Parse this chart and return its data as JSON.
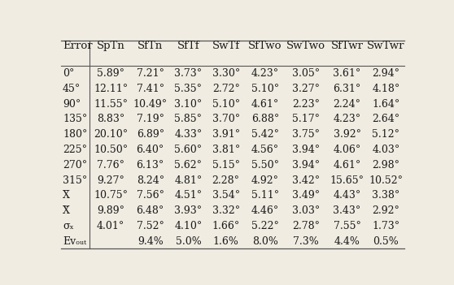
{
  "headers": [
    "Error",
    "SpTn",
    "SfTn",
    "SfTf",
    "SwTf",
    "SfTwo",
    "SwTwo",
    "SfTwr",
    "SwTwr"
  ],
  "rows": [
    {
      "label": "0°",
      "values": [
        "5.89°",
        "7.21°",
        "3.73°",
        "3.30°",
        "4.23°",
        "3.05°",
        "3.61°",
        "2.94°"
      ]
    },
    {
      "label": "45°",
      "values": [
        "12.11°",
        "7.41°",
        "5.35°",
        "2.72°",
        "5.10°",
        "3.27°",
        "6.31°",
        "4.18°"
      ]
    },
    {
      "label": "90°",
      "values": [
        "11.55°",
        "10.49°",
        "3.10°",
        "5.10°",
        "4.61°",
        "2.23°",
        "2.24°",
        "1.64°"
      ]
    },
    {
      "label": "135°",
      "values": [
        "8.83°",
        "7.19°",
        "5.85°",
        "3.70°",
        "6.88°",
        "5.17°",
        "4.23°",
        "2.64°"
      ]
    },
    {
      "label": "180°",
      "values": [
        "20.10°",
        "6.89°",
        "4.33°",
        "3.91°",
        "5.42°",
        "3.75°",
        "3.92°",
        "5.12°"
      ]
    },
    {
      "label": "225°",
      "values": [
        "10.50°",
        "6.40°",
        "5.60°",
        "3.81°",
        "4.56°",
        "3.94°",
        "4.06°",
        "4.03°"
      ]
    },
    {
      "label": "270°",
      "values": [
        "7.76°",
        "6.13°",
        "5.62°",
        "5.15°",
        "5.50°",
        "3.94°",
        "4.61°",
        "2.98°"
      ]
    },
    {
      "label": "315°",
      "values": [
        "9.27°",
        "8.24°",
        "4.81°",
        "2.28°",
        "4.92°",
        "3.42°",
        "15.65°",
        "10.52°"
      ]
    },
    {
      "label": "X̄",
      "values": [
        "10.75°",
        "7.56°",
        "4.51°",
        "3.54°",
        "5.11°",
        "3.49°",
        "4.43°",
        "3.38°"
      ]
    },
    {
      "label": "X̃",
      "values": [
        "9.89°",
        "6.48°",
        "3.93°",
        "3.32°",
        "4.46°",
        "3.03°",
        "3.43°",
        "2.92°"
      ]
    },
    {
      "label": "σₓ",
      "values": [
        "4.01°",
        "7.52°",
        "4.10°",
        "1.66°",
        "5.22°",
        "2.78°",
        "7.55°",
        "1.73°"
      ]
    },
    {
      "label": "Evₒᵤₜ",
      "values": [
        "",
        "9.4%",
        "5.0%",
        "1.6%",
        "8.0%",
        "7.3%",
        "4.4%",
        "0.5%"
      ]
    }
  ],
  "background_color": "#f0ece2",
  "text_color": "#1a1a1a",
  "line_color": "#555555",
  "header_fontsize": 9.5,
  "cell_fontsize": 9.0,
  "fig_width": 5.58,
  "fig_height": 3.51,
  "dpi": 100
}
